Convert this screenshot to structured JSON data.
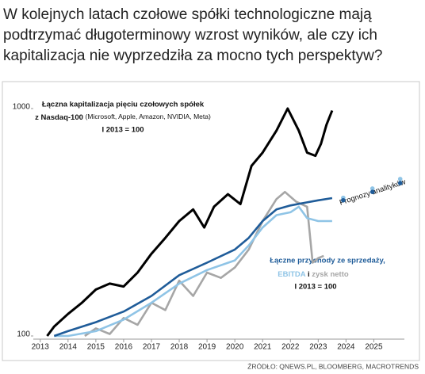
{
  "chart_data": {
    "type": "line",
    "title_lines": [
      "W kolejnych latach czołowe spółki technologiczne mają",
      "podtrzymać długoterminowy wzrost wyników, ale czy ich",
      "kapitalizacja nie wyprzedziła za mocno tych perspektyw?"
    ],
    "log_y": true,
    "xlim": [
      2012.75,
      2026.1
    ],
    "ylim": [
      100,
      1000
    ],
    "xticks": [
      2013,
      2014,
      2015,
      2016,
      2017,
      2018,
      2019,
      2020,
      2021,
      2022,
      2023,
      2024,
      2025
    ],
    "yticks": [
      100,
      1000
    ],
    "series": [
      {
        "name": "Łączna kapitalizacja pięciu czołowych spółek",
        "color": "#000000",
        "x": [
          2013.25,
          2013.5,
          2014,
          2014.5,
          2015,
          2015.5,
          2016,
          2016.5,
          2017,
          2017.5,
          2018,
          2018.5,
          2018.9,
          2019.25,
          2019.75,
          2020.2,
          2020.6,
          2021,
          2021.5,
          2021.9,
          2022.3,
          2022.6,
          2022.9,
          2023.1,
          2023.3,
          2023.5
        ],
        "values": [
          100,
          110,
          125,
          140,
          160,
          170,
          165,
          190,
          230,
          270,
          320,
          360,
          300,
          370,
          420,
          380,
          560,
          640,
          800,
          1000,
          800,
          640,
          620,
          700,
          850,
          980
        ]
      },
      {
        "name": "Łączne przychody ze sprzedaży,",
        "color": "#1f5c99",
        "x": [
          2013.5,
          2014,
          2015,
          2016,
          2017,
          2018,
          2019,
          2020,
          2020.5,
          2021,
          2021.5,
          2022,
          2022.5,
          2023,
          2023.5
        ],
        "values": [
          100,
          105,
          115,
          128,
          150,
          185,
          210,
          240,
          270,
          320,
          360,
          375,
          385,
          395,
          404
        ]
      },
      {
        "name": "EBITDA",
        "color": "#8fc4e6",
        "x": [
          2013.5,
          2014,
          2015,
          2016,
          2017,
          2018,
          2019,
          2020,
          2020.5,
          2021,
          2021.5,
          2022,
          2022.3,
          2022.6,
          2023,
          2023.5
        ],
        "values": [
          100,
          100,
          105,
          118,
          140,
          170,
          195,
          215,
          250,
          300,
          340,
          350,
          370,
          330,
          320,
          320
        ]
      },
      {
        "name": "zysk netto",
        "color": "#a6a6a6",
        "x": [
          2014.6,
          2015,
          2015.5,
          2016,
          2016.5,
          2017,
          2017.5,
          2018,
          2018.5,
          2019,
          2019.5,
          2020,
          2020.5,
          2021,
          2021.5,
          2021.8,
          2022.2,
          2022.6,
          2022.8,
          2023,
          2023.2
        ],
        "values": [
          100,
          108,
          102,
          120,
          112,
          140,
          130,
          175,
          150,
          190,
          180,
          200,
          240,
          320,
          400,
          430,
          390,
          370,
          210,
          220,
          225
        ]
      }
    ],
    "forecast_series": [
      {
        "color": "#8fc4e6",
        "x": [
          2023.9,
          2024.95,
          2025.95
        ],
        "values": [
          405,
          445,
          490
        ]
      },
      {
        "color": "#1f5c99",
        "x": [
          2023.9,
          2024.95,
          2025.95
        ],
        "values": [
          395,
          430,
          470
        ]
      }
    ],
    "annotation_cap": [
      "Łączna kapitalizacja pięciu czołowych spółek",
      "z Nasdaq-100",
      "(Microsoft, Apple, Amazon, NVIDIA, Meta)",
      "I 2013 = 100"
    ],
    "annotation_forecast": "Prognozy analityków",
    "annotation_results": [
      "Łączne przychody ze sprzedaży,",
      "EBITDA",
      "i",
      "zysk netto",
      "I 2013 = 100"
    ],
    "source": "ŹRÓDŁO: QNEWS.PL, BLOOMBERG, MACROTRENDS"
  }
}
